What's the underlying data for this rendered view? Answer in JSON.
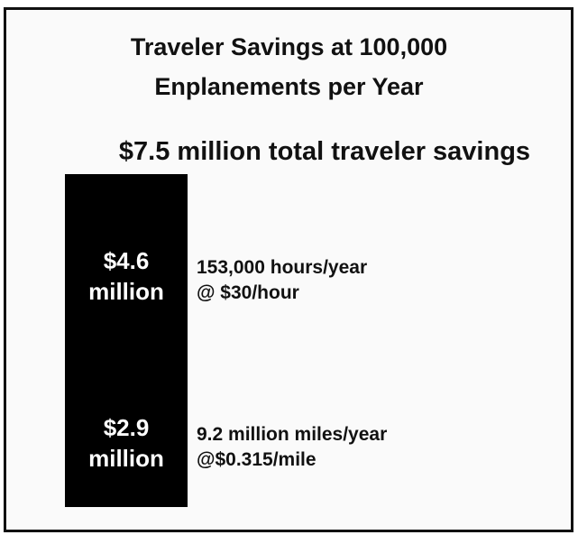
{
  "chart_data": {
    "type": "stacked-bar",
    "title": [
      "Traveler Savings at 100,000",
      "Enplanements per Year"
    ],
    "subtitle": "$7.5 million total traveler savings",
    "values": [
      2.9,
      4.6
    ],
    "value_labels": [
      "$2.9 million",
      "$4.6 million"
    ],
    "notes": [
      [
        "9.2 million miles/year",
        "@$0.315/mile"
      ],
      [
        "153,000 hours/year",
        "@ $30/hour"
      ]
    ],
    "color": "#000000"
  }
}
